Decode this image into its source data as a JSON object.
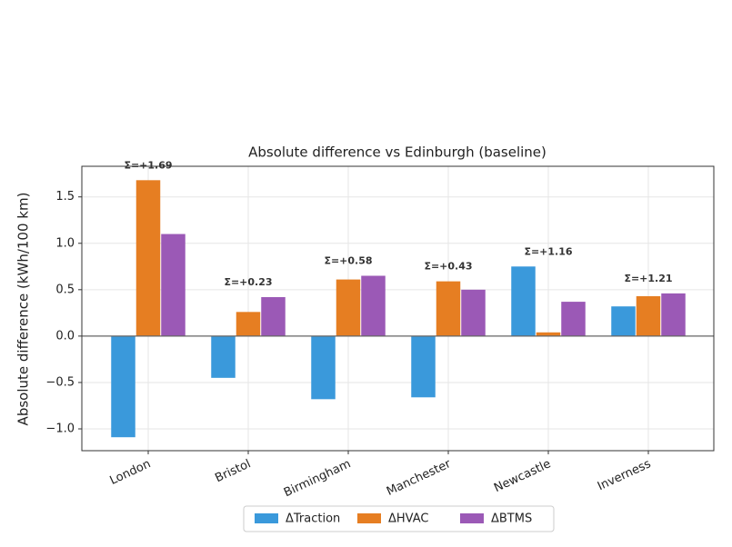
{
  "chart_data": {
    "type": "bar",
    "title": "Absolute difference vs Edinburgh (baseline)",
    "y_label": "Absolute difference (kWh/100 km)",
    "categories": [
      "London",
      "Bristol",
      "Birmingham",
      "Manchester",
      "Newcastle",
      "Inverness"
    ],
    "series": [
      {
        "name": "ΔTraction",
        "color": "#3a99db",
        "values": [
          -1.09,
          -0.45,
          -0.68,
          -0.66,
          0.75,
          0.32
        ]
      },
      {
        "name": "ΔHVAC",
        "color": "#e67e22",
        "values": [
          1.68,
          0.26,
          0.61,
          0.59,
          0.04,
          0.43
        ]
      },
      {
        "name": "ΔBTMS",
        "color": "#9b59b6",
        "values": [
          1.1,
          0.42,
          0.65,
          0.5,
          0.37,
          0.46
        ]
      }
    ],
    "sum_labels": [
      "Σ=+1.69",
      "Σ=+0.23",
      "Σ=+0.58",
      "Σ=+0.43",
      "Σ=+1.16",
      "Σ=+1.21"
    ],
    "ylim": [
      -1.235,
      1.83
    ],
    "yticks": [
      {
        "value": -1.0,
        "label": "−1.0"
      },
      {
        "value": -0.5,
        "label": "−0.5"
      },
      {
        "value": 0.0,
        "label": "0.0"
      },
      {
        "value": 0.5,
        "label": "0.5"
      },
      {
        "value": 1.0,
        "label": "1.0"
      },
      {
        "value": 1.5,
        "label": "1.5"
      }
    ],
    "grid": true
  }
}
